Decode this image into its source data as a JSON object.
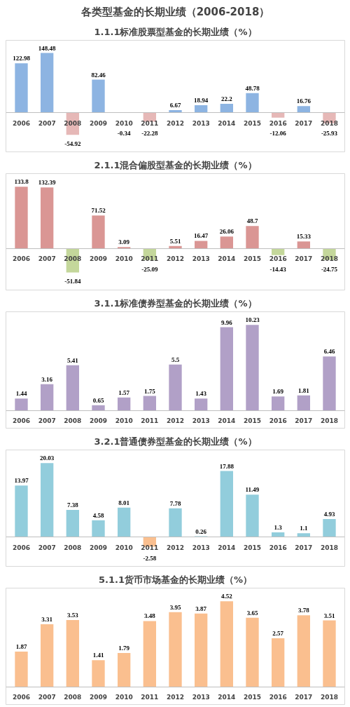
{
  "chart_data": [
    {
      "type": "bar",
      "title": "各类型基金的长期业绩（2006-2018）",
      "subtitle": "1.1.1标准股票型基金的长期业绩（%）",
      "categories": [
        "2006",
        "2007",
        "2008",
        "2009",
        "2010",
        "2011",
        "2012",
        "2013",
        "2014",
        "2015",
        "2016",
        "2017",
        "2018"
      ],
      "values": [
        122.98,
        148.48,
        -54.92,
        82.46,
        -0.34,
        -22.28,
        6.67,
        18.94,
        22.2,
        48.78,
        -12.06,
        16.76,
        -25.93
      ],
      "colors": [
        "#8db4e2",
        "#8db4e2",
        "#e6b8b7",
        "#8db4e2",
        "#e6b8b7",
        "#e6b8b7",
        "#8db4e2",
        "#8db4e2",
        "#8db4e2",
        "#8db4e2",
        "#e6b8b7",
        "#8db4e2",
        "#e6b8b7"
      ],
      "data_labels": true
    },
    {
      "type": "bar",
      "title": "2.1.1混合偏股型基金的长期业绩（%）",
      "categories": [
        "2006",
        "2007",
        "2008",
        "2009",
        "2010",
        "2011",
        "2012",
        "2013",
        "2014",
        "2015",
        "2016",
        "2017",
        "2018"
      ],
      "values": [
        133.8,
        132.39,
        -51.84,
        71.52,
        3.09,
        -25.09,
        5.51,
        16.47,
        26.06,
        48.7,
        -14.43,
        15.33,
        -24.75
      ],
      "colors": [
        "#da9694",
        "#da9694",
        "#c4d79b",
        "#da9694",
        "#da9694",
        "#c4d79b",
        "#da9694",
        "#da9694",
        "#da9694",
        "#da9694",
        "#c4d79b",
        "#da9694",
        "#c4d79b"
      ],
      "data_labels": true
    },
    {
      "type": "bar",
      "title": "3.1.1标准债券型基金的长期业绩（%）",
      "categories": [
        "2006",
        "2007",
        "2008",
        "2009",
        "2010",
        "2011",
        "2012",
        "2013",
        "2014",
        "2015",
        "2016",
        "2017",
        "2018"
      ],
      "values": [
        1.44,
        3.16,
        5.41,
        0.65,
        1.57,
        1.75,
        5.5,
        1.43,
        9.96,
        10.23,
        1.69,
        1.81,
        6.46
      ],
      "colors": [
        "#b1a0c7",
        "#b1a0c7",
        "#b1a0c7",
        "#b1a0c7",
        "#b1a0c7",
        "#b1a0c7",
        "#b1a0c7",
        "#b1a0c7",
        "#b1a0c7",
        "#b1a0c7",
        "#b1a0c7",
        "#b1a0c7",
        "#b1a0c7"
      ],
      "data_labels": true
    },
    {
      "type": "bar",
      "title": "3.2.1普通债券型基金的长期业绩（%）",
      "categories": [
        "2006",
        "2007",
        "2008",
        "2009",
        "2010",
        "2011",
        "2012",
        "2013",
        "2014",
        "2015",
        "2016",
        "2017",
        "2018"
      ],
      "values": [
        13.97,
        20.03,
        7.38,
        4.58,
        8.01,
        -2.58,
        7.78,
        0.26,
        17.88,
        11.49,
        1.3,
        1.1,
        4.93
      ],
      "colors": [
        "#92cddc",
        "#92cddc",
        "#92cddc",
        "#92cddc",
        "#92cddc",
        "#fabf8f",
        "#92cddc",
        "#92cddc",
        "#92cddc",
        "#92cddc",
        "#92cddc",
        "#92cddc",
        "#92cddc"
      ],
      "data_labels": true
    },
    {
      "type": "bar",
      "title": "5.1.1货币市场基金的长期业绩（%）",
      "categories": [
        "2006",
        "2007",
        "2008",
        "2009",
        "2010",
        "2011",
        "2012",
        "2013",
        "2014",
        "2015",
        "2016",
        "2017",
        "2018"
      ],
      "values": [
        1.87,
        3.31,
        3.53,
        1.41,
        1.79,
        3.48,
        3.95,
        3.87,
        4.52,
        3.65,
        2.57,
        3.78,
        3.51
      ],
      "colors": [
        "#fabf8f",
        "#fabf8f",
        "#fabf8f",
        "#fabf8f",
        "#fabf8f",
        "#fabf8f",
        "#fabf8f",
        "#fabf8f",
        "#fabf8f",
        "#fabf8f",
        "#fabf8f",
        "#fabf8f",
        "#fabf8f"
      ],
      "data_labels": true
    }
  ]
}
